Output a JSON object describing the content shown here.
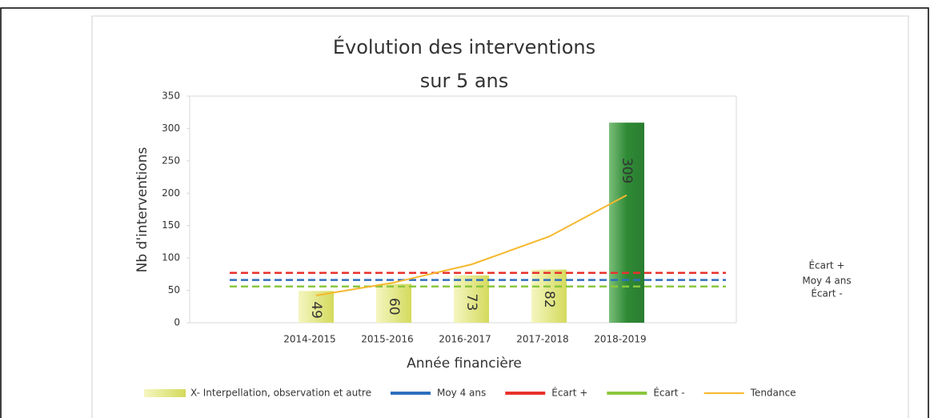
{
  "chart_data": {
    "type": "bar",
    "title_lines": [
      "Évolution des interventions",
      "sur 5 ans"
    ],
    "x_label": "Année financière",
    "y_label": "Nb d'interventions",
    "categories": [
      "2014-2015",
      "2015-2016",
      "2016-2017",
      "2017-2018",
      "2018-2019"
    ],
    "series": [
      {
        "name": "X- Interpellation, observation et autre",
        "color": "#dfe37e",
        "colors": [
          "#dfe37e",
          "#dfe37e",
          "#dfe37e",
          "#dfe37e",
          "#2f8a35"
        ],
        "values": [
          49,
          60,
          73,
          82,
          309
        ]
      },
      {
        "name": "Tendance",
        "color": "#f5b82e",
        "type": "line",
        "values": [
          42,
          62,
          90,
          133,
          197
        ]
      }
    ],
    "reference_lines": [
      {
        "name": "Moy 4 ans",
        "color": "#2e6fbf",
        "value": 66
      },
      {
        "name": "Écart +",
        "color": "#e8312c",
        "value": 77
      },
      {
        "name": "Écart -",
        "color": "#8cc63f",
        "value": 56
      }
    ],
    "ylim": [
      0,
      350
    ],
    "yticks": [
      0,
      50,
      100,
      150,
      200,
      250,
      300,
      350
    ],
    "grid": false
  }
}
